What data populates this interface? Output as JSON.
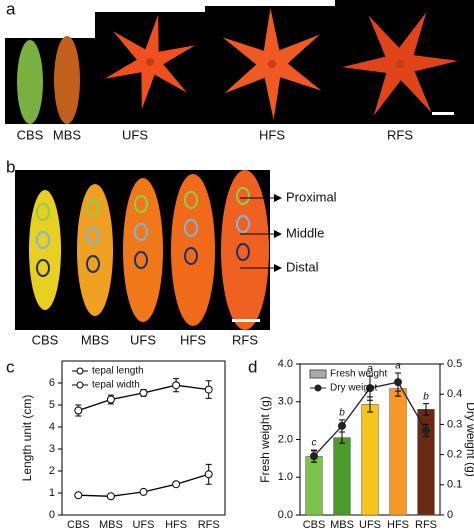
{
  "panels": {
    "a": {
      "label": "a",
      "stages": [
        "CBS",
        "MBS",
        "UFS",
        "HFS",
        "RFS"
      ]
    },
    "b": {
      "label": "b",
      "stages": [
        "CBS",
        "MBS",
        "UFS",
        "HFS",
        "RFS"
      ],
      "regions": [
        "Proximal",
        "Middle",
        "Distal"
      ]
    },
    "c": {
      "label": "c"
    },
    "d": {
      "label": "d"
    }
  },
  "chart_data": [
    {
      "type": "line",
      "categories": [
        "CBS",
        "MBS",
        "UFS",
        "HFS",
        "RFS"
      ],
      "ylabel": "Length unit (cm)",
      "ylim": [
        0,
        7
      ],
      "yticks": [
        0,
        1,
        2,
        3,
        4,
        5,
        6
      ],
      "legend": "upper left",
      "series": [
        {
          "name": "tepal length",
          "color": "#000000",
          "values": [
            4.75,
            5.25,
            5.55,
            5.9,
            5.7
          ],
          "errors": [
            0.25,
            0.2,
            0.15,
            0.3,
            0.4
          ]
        },
        {
          "name": "tepal width",
          "color": "#000000",
          "values": [
            0.9,
            0.85,
            1.05,
            1.4,
            1.85
          ],
          "errors": [
            0.05,
            0.1,
            0.05,
            0.1,
            0.45
          ]
        }
      ]
    },
    {
      "type": "bar_line",
      "categories": [
        "CBS",
        "MBS",
        "UFS",
        "HFS",
        "RFS"
      ],
      "ylabel": "Fresh weight (g)",
      "y2label": "Dry weight (g)",
      "ylim": [
        0,
        4
      ],
      "yticks": [
        {
          "value": 0,
          "label": "0.0"
        },
        {
          "value": 1,
          "label": "1.0"
        },
        {
          "value": 2,
          "label": "2.0"
        },
        {
          "value": 3,
          "label": "3.0"
        },
        {
          "value": 4,
          "label": "4.0"
        }
      ],
      "y2lim": [
        0,
        0.5
      ],
      "y2ticks": [
        0,
        0.1,
        0.2,
        0.3,
        0.4,
        0.5
      ],
      "legend": "upper left",
      "series": [
        {
          "name": "Fresh weight",
          "kind": "bar",
          "colors": [
            "#7dc24b",
            "#4c9a2c",
            "#f6c51a",
            "#f7982b",
            "#6a2a12"
          ],
          "values": [
            1.55,
            2.05,
            2.93,
            3.35,
            2.8
          ],
          "errors": [
            0.15,
            0.15,
            0.2,
            0.2,
            0.15
          ],
          "letters": [
            "c",
            "b",
            "a",
            "a",
            "b"
          ]
        },
        {
          "name": "Dry weight",
          "kind": "line",
          "axis": "y2",
          "color": "#222222",
          "values": [
            0.195,
            0.295,
            0.42,
            0.44,
            0.28
          ],
          "errors": [
            0.02,
            0.02,
            0.04,
            0.03,
            0.02
          ]
        }
      ]
    }
  ]
}
